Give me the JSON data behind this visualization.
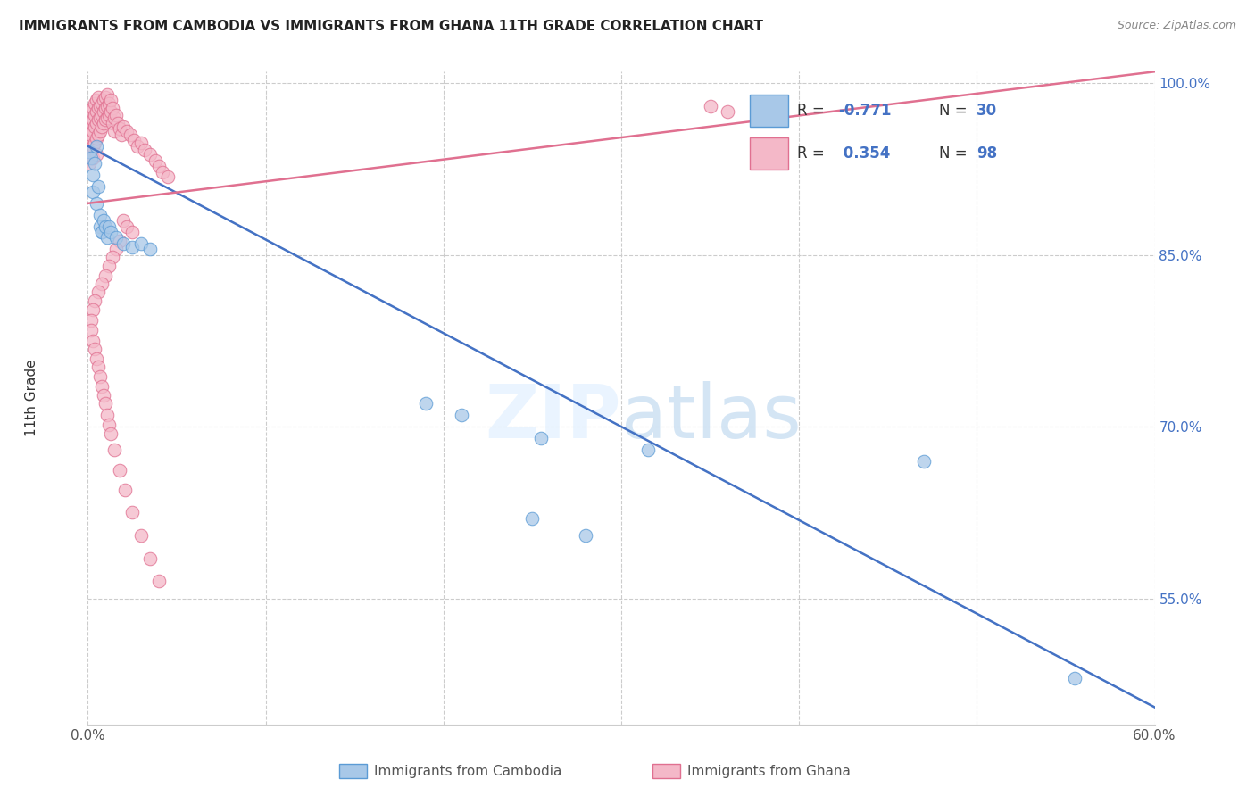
{
  "title": "IMMIGRANTS FROM CAMBODIA VS IMMIGRANTS FROM GHANA 11TH GRADE CORRELATION CHART",
  "source": "Source: ZipAtlas.com",
  "ylabel": "11th Grade",
  "color_cambodia_fill": "#a8c8e8",
  "color_cambodia_edge": "#5b9bd5",
  "color_cambodia_line": "#4472c4",
  "color_ghana_fill": "#f4b8c8",
  "color_ghana_edge": "#e07090",
  "color_ghana_line": "#e07090",
  "xlim": [
    0.0,
    0.6
  ],
  "ylim": [
    0.44,
    1.01
  ],
  "ytick_vals": [
    0.55,
    0.7,
    0.85,
    1.0
  ],
  "ytick_labels": [
    "55.0%",
    "70.0%",
    "85.0%",
    "100.0%"
  ],
  "xtick_vals": [
    0.0,
    0.1,
    0.2,
    0.3,
    0.4,
    0.5,
    0.6
  ],
  "xtick_labels": [
    "0.0%",
    "",
    "",
    "",
    "",
    "",
    "60.0%"
  ],
  "legend_r1": "-0.771",
  "legend_n1": "30",
  "legend_r2": "0.354",
  "legend_n2": "98",
  "cambodia_x": [
    0.001,
    0.002,
    0.003,
    0.003,
    0.004,
    0.005,
    0.005,
    0.006,
    0.007,
    0.007,
    0.008,
    0.008,
    0.009,
    0.01,
    0.011,
    0.012,
    0.013,
    0.016,
    0.02,
    0.025,
    0.03,
    0.035,
    0.19,
    0.21,
    0.255,
    0.315,
    0.47,
    0.555,
    0.25,
    0.28
  ],
  "cambodia_y": [
    0.94,
    0.935,
    0.92,
    0.905,
    0.93,
    0.945,
    0.895,
    0.91,
    0.885,
    0.875,
    0.87,
    0.87,
    0.88,
    0.875,
    0.865,
    0.875,
    0.87,
    0.865,
    0.86,
    0.857,
    0.86,
    0.855,
    0.72,
    0.71,
    0.69,
    0.68,
    0.67,
    0.48,
    0.62,
    0.605
  ],
  "ghana_x": [
    0.001,
    0.001,
    0.001,
    0.002,
    0.002,
    0.002,
    0.002,
    0.003,
    0.003,
    0.003,
    0.003,
    0.003,
    0.004,
    0.004,
    0.004,
    0.004,
    0.005,
    0.005,
    0.005,
    0.005,
    0.005,
    0.006,
    0.006,
    0.006,
    0.006,
    0.007,
    0.007,
    0.007,
    0.008,
    0.008,
    0.008,
    0.009,
    0.009,
    0.009,
    0.01,
    0.01,
    0.01,
    0.011,
    0.011,
    0.011,
    0.012,
    0.012,
    0.013,
    0.013,
    0.014,
    0.014,
    0.015,
    0.015,
    0.016,
    0.017,
    0.018,
    0.019,
    0.02,
    0.022,
    0.024,
    0.026,
    0.028,
    0.03,
    0.032,
    0.035,
    0.038,
    0.04,
    0.042,
    0.045,
    0.02,
    0.022,
    0.025,
    0.018,
    0.016,
    0.014,
    0.012,
    0.01,
    0.008,
    0.006,
    0.004,
    0.003,
    0.002,
    0.002,
    0.003,
    0.004,
    0.005,
    0.006,
    0.007,
    0.008,
    0.009,
    0.01,
    0.011,
    0.012,
    0.013,
    0.015,
    0.018,
    0.021,
    0.025,
    0.03,
    0.035,
    0.04,
    0.35,
    0.36
  ],
  "ghana_y": [
    0.93,
    0.95,
    0.96,
    0.94,
    0.955,
    0.965,
    0.975,
    0.945,
    0.958,
    0.968,
    0.978,
    0.935,
    0.948,
    0.962,
    0.972,
    0.982,
    0.952,
    0.965,
    0.975,
    0.985,
    0.938,
    0.955,
    0.968,
    0.978,
    0.988,
    0.958,
    0.97,
    0.98,
    0.962,
    0.972,
    0.982,
    0.965,
    0.975,
    0.985,
    0.968,
    0.978,
    0.988,
    0.97,
    0.98,
    0.99,
    0.972,
    0.982,
    0.975,
    0.985,
    0.978,
    0.965,
    0.97,
    0.958,
    0.972,
    0.965,
    0.96,
    0.955,
    0.962,
    0.958,
    0.955,
    0.95,
    0.945,
    0.948,
    0.942,
    0.938,
    0.932,
    0.928,
    0.922,
    0.918,
    0.88,
    0.875,
    0.87,
    0.862,
    0.855,
    0.848,
    0.84,
    0.832,
    0.825,
    0.818,
    0.81,
    0.802,
    0.793,
    0.784,
    0.775,
    0.768,
    0.759,
    0.752,
    0.744,
    0.735,
    0.727,
    0.72,
    0.71,
    0.702,
    0.694,
    0.68,
    0.662,
    0.645,
    0.625,
    0.605,
    0.585,
    0.565,
    0.98,
    0.975
  ]
}
